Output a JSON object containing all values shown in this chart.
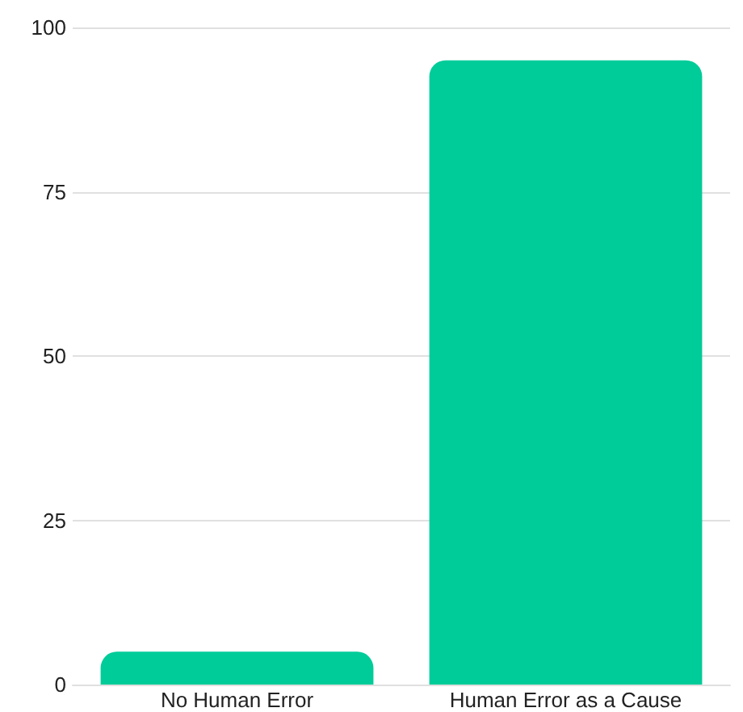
{
  "chart_data": {
    "type": "bar",
    "categories": [
      "No Human Error",
      "Human Error as a Cause"
    ],
    "values": [
      5,
      95
    ],
    "color": "#00cc99",
    "ylim": [
      0,
      100
    ],
    "yticks": [
      0,
      25,
      50,
      75,
      100
    ],
    "grid": "y"
  }
}
